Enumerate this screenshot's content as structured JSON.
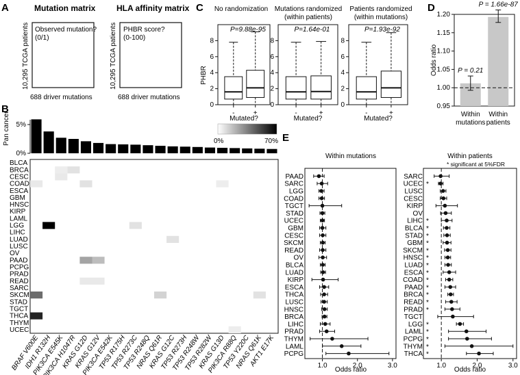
{
  "panelA": {
    "label": "A",
    "matrix1": {
      "title": "Mutation matrix",
      "ylabel": "10,295 TCGA patients",
      "cell": [
        "Observed mutation?",
        "(0/1)"
      ],
      "xlabel": "688 driver mutations"
    },
    "matrix2": {
      "title": "HLA affinity matrix",
      "ylabel": "10,295 TCGA patients",
      "cell": [
        "PHBR score?",
        "(0-100)"
      ],
      "xlabel": "688 driver mutations"
    }
  },
  "panelB": {
    "label": "B",
    "bar_ylabel": "Pan cancer",
    "bar_yticks": [
      "5%",
      "0%"
    ],
    "colorbar": {
      "min": "0%",
      "max": "70%"
    },
    "mutations": [
      "BRAF V600E",
      "IDH1 R132H",
      "PIK3CA E545K",
      "PIK3CA H1047R",
      "KRAS G12D",
      "KRAS G12V",
      "PIK3CA E542K",
      "TP53 R175H",
      "TP53 R273C",
      "TP53 R248Q",
      "NRAS Q61R",
      "KRAS G12C",
      "TP53 R273H",
      "TP53 R248W",
      "TP53 R282W",
      "KRAS G13D",
      "PIK3CA R88Q",
      "TP53 Y220C",
      "NRAS Q61K",
      "AKT1 E17K"
    ],
    "pan_values": [
      5.9,
      3.8,
      2.7,
      2.5,
      2.1,
      1.8,
      1.6,
      1.55,
      1.5,
      1.4,
      1.3,
      1.2,
      1.15,
      1.1,
      1.0,
      0.95,
      0.9,
      0.85,
      0.8,
      0.75
    ],
    "cancers": [
      "BLCA",
      "BRCA",
      "CESC",
      "COAD",
      "ESCA",
      "GBM",
      "HNSC",
      "KIRP",
      "LAML",
      "LGG",
      "LIHC",
      "LUAD",
      "LUSC",
      "OV",
      "PAAD",
      "PCPG",
      "PRAD",
      "READ",
      "SARC",
      "SKCM",
      "STAD",
      "TGCT",
      "THCA",
      "THYM",
      "UCEC"
    ],
    "highlights": [
      {
        "cancer": "LGG",
        "mutation": "IDH1 R132H",
        "value": 70
      },
      {
        "cancer": "THCA",
        "mutation": "BRAF V600E",
        "value": 60
      },
      {
        "cancer": "SKCM",
        "mutation": "BRAF V600E",
        "value": 40
      },
      {
        "cancer": "PAAD",
        "mutation": "KRAS G12D",
        "value": 25
      },
      {
        "cancer": "PAAD",
        "mutation": "KRAS G12V",
        "value": 18
      },
      {
        "cancer": "COAD",
        "mutation": "KRAS G12D",
        "value": 8
      },
      {
        "cancer": "SKCM",
        "mutation": "NRAS Q61R",
        "value": 12
      },
      {
        "cancer": "SKCM",
        "mutation": "NRAS Q61K",
        "value": 8
      },
      {
        "cancer": "BRCA",
        "mutation": "PIK3CA H1047R",
        "value": 8
      },
      {
        "cancer": "BRCA",
        "mutation": "PIK3CA E545K",
        "value": 5
      },
      {
        "cancer": "CESC",
        "mutation": "PIK3CA E545K",
        "value": 6
      },
      {
        "cancer": "LUAD",
        "mutation": "KRAS G12C",
        "value": 8
      },
      {
        "cancer": "READ",
        "mutation": "KRAS G12D",
        "value": 6
      },
      {
        "cancer": "READ",
        "mutation": "KRAS G12V",
        "value": 6
      },
      {
        "cancer": "LGG",
        "mutation": "TP53 R273C",
        "value": 8
      },
      {
        "cancer": "COAD",
        "mutation": "BRAF V600E",
        "value": 6
      },
      {
        "cancer": "UCEC",
        "mutation": "PIK3CA R88Q",
        "value": 5
      },
      {
        "cancer": "COAD",
        "mutation": "KRAS G13D",
        "value": 5
      }
    ]
  },
  "panelC": {
    "label": "C",
    "ylabel": "PHBR",
    "yticks": [
      0,
      2,
      4,
      6,
      8
    ],
    "xticks": [
      "-",
      "+"
    ],
    "xlabel": "Mutated?",
    "plots": [
      {
        "title1": "No randomization",
        "title2": "",
        "pval": "P=9.88e-95",
        "boxes": [
          {
            "lw": 0,
            "q1": 0.7,
            "med": 1.6,
            "q3": 3.5,
            "uw": 7.8
          },
          {
            "lw": 0,
            "q1": 0.9,
            "med": 2.1,
            "q3": 4.3,
            "uw": 9.1
          }
        ]
      },
      {
        "title1": "Mutations randomized",
        "title2": "(within patients)",
        "pval": "P=1.64e-01",
        "boxes": [
          {
            "lw": 0,
            "q1": 0.7,
            "med": 1.6,
            "q3": 3.5,
            "uw": 7.8
          },
          {
            "lw": 0,
            "q1": 0.7,
            "med": 1.65,
            "q3": 3.6,
            "uw": 7.9
          }
        ]
      },
      {
        "title1": "Patients randomized",
        "title2": "(within mutations)",
        "pval": "P=1.93e-92",
        "boxes": [
          {
            "lw": 0,
            "q1": 0.7,
            "med": 1.6,
            "q3": 3.5,
            "uw": 7.8
          },
          {
            "lw": 0,
            "q1": 0.9,
            "med": 2.1,
            "q3": 4.2,
            "uw": 9.0
          }
        ]
      }
    ]
  },
  "panelD": {
    "label": "D",
    "chart_data": {
      "type": "bar",
      "categories": [
        "Within mutations",
        "Within patients"
      ],
      "category_lines": [
        [
          "Within",
          "mutations"
        ],
        [
          "Within",
          "patients"
        ]
      ],
      "values": [
        1.012,
        1.193
      ],
      "errors": [
        [
          0.993,
          1.032
        ],
        [
          1.178,
          1.212
        ]
      ],
      "labels": [
        "P = 0.21",
        "P = 1.66e-87"
      ],
      "ylabel": "Odds ratio",
      "ylim": [
        0.95,
        1.2
      ],
      "yticks": [
        "0.95",
        "1.00",
        "1.05",
        "1.10",
        "1.15",
        "1.20"
      ],
      "reference_line": 1.0
    }
  },
  "panelE": {
    "label": "E",
    "xlabel": "Odds ratio",
    "xticks": [
      "1.0",
      "2.0",
      "3.0"
    ],
    "legend": "* significant at 5%FDR",
    "left": {
      "title": "Within mutations",
      "rows": [
        {
          "name": "PAAD",
          "or": 0.9,
          "lo": 0.75,
          "hi": 1.05,
          "sig": false
        },
        {
          "name": "SARC",
          "or": 0.98,
          "lo": 0.85,
          "hi": 1.15,
          "sig": false
        },
        {
          "name": "LGG",
          "or": 0.97,
          "lo": 0.9,
          "hi": 1.05,
          "sig": false
        },
        {
          "name": "COAD",
          "or": 0.98,
          "lo": 0.9,
          "hi": 1.06,
          "sig": false
        },
        {
          "name": "TGCT",
          "or": 1.0,
          "lo": 0.62,
          "hi": 1.55,
          "sig": false
        },
        {
          "name": "STAD",
          "or": 1.0,
          "lo": 0.93,
          "hi": 1.07,
          "sig": false
        },
        {
          "name": "UCEC",
          "or": 1.0,
          "lo": 0.94,
          "hi": 1.06,
          "sig": false
        },
        {
          "name": "GBM",
          "or": 1.0,
          "lo": 0.92,
          "hi": 1.1,
          "sig": false
        },
        {
          "name": "CESC",
          "or": 1.01,
          "lo": 0.92,
          "hi": 1.1,
          "sig": false
        },
        {
          "name": "SKCM",
          "or": 1.01,
          "lo": 0.94,
          "hi": 1.08,
          "sig": false
        },
        {
          "name": "READ",
          "or": 1.01,
          "lo": 0.92,
          "hi": 1.1,
          "sig": false
        },
        {
          "name": "OV",
          "or": 1.01,
          "lo": 0.9,
          "hi": 1.12,
          "sig": false
        },
        {
          "name": "BLCA",
          "or": 1.01,
          "lo": 0.94,
          "hi": 1.08,
          "sig": false
        },
        {
          "name": "LUAD",
          "or": 1.02,
          "lo": 0.95,
          "hi": 1.09,
          "sig": false
        },
        {
          "name": "KIRP",
          "or": 1.02,
          "lo": 0.7,
          "hi": 1.45,
          "sig": false
        },
        {
          "name": "ESCA",
          "or": 1.05,
          "lo": 0.92,
          "hi": 1.18,
          "sig": false
        },
        {
          "name": "THCA",
          "or": 1.05,
          "lo": 0.95,
          "hi": 1.15,
          "sig": false
        },
        {
          "name": "LUSC",
          "or": 1.05,
          "lo": 0.96,
          "hi": 1.14,
          "sig": false
        },
        {
          "name": "HNSC",
          "or": 1.06,
          "lo": 0.98,
          "hi": 1.14,
          "sig": false
        },
        {
          "name": "BRCA",
          "or": 1.06,
          "lo": 0.99,
          "hi": 1.13,
          "sig": false
        },
        {
          "name": "LIHC",
          "or": 1.08,
          "lo": 0.94,
          "hi": 1.22,
          "sig": false
        },
        {
          "name": "PRAD",
          "or": 1.12,
          "lo": 0.92,
          "hi": 1.35,
          "sig": false
        },
        {
          "name": "THYM",
          "or": 1.28,
          "lo": 0.65,
          "hi": 2.3,
          "sig": false
        },
        {
          "name": "LAML",
          "or": 1.55,
          "lo": 1.0,
          "hi": 2.1,
          "sig": false
        },
        {
          "name": "PCPG",
          "or": 1.75,
          "lo": 1.1,
          "hi": 2.9,
          "sig": false
        }
      ]
    },
    "right": {
      "title": "Within patients",
      "rows": [
        {
          "name": "SARC",
          "or": 0.98,
          "lo": 0.8,
          "hi": 1.22,
          "sig": false
        },
        {
          "name": "UCEC",
          "or": 0.98,
          "lo": 0.92,
          "hi": 1.05,
          "sig": true
        },
        {
          "name": "LUSC",
          "or": 1.05,
          "lo": 0.97,
          "hi": 1.13,
          "sig": false
        },
        {
          "name": "CESC",
          "or": 1.06,
          "lo": 0.97,
          "hi": 1.15,
          "sig": false
        },
        {
          "name": "KIRP",
          "or": 1.1,
          "lo": 0.85,
          "hi": 1.45,
          "sig": false
        },
        {
          "name": "OV",
          "or": 1.12,
          "lo": 0.98,
          "hi": 1.28,
          "sig": false
        },
        {
          "name": "LIHC",
          "or": 1.15,
          "lo": 1.0,
          "hi": 1.3,
          "sig": true
        },
        {
          "name": "BLCA",
          "or": 1.15,
          "lo": 1.06,
          "hi": 1.24,
          "sig": true
        },
        {
          "name": "STAD",
          "or": 1.16,
          "lo": 1.07,
          "hi": 1.25,
          "sig": true
        },
        {
          "name": "GBM",
          "or": 1.16,
          "lo": 1.05,
          "hi": 1.27,
          "sig": true
        },
        {
          "name": "SKCM",
          "or": 1.18,
          "lo": 1.09,
          "hi": 1.27,
          "sig": true
        },
        {
          "name": "HNSC",
          "or": 1.18,
          "lo": 1.1,
          "hi": 1.26,
          "sig": true
        },
        {
          "name": "LUAD",
          "or": 1.19,
          "lo": 1.1,
          "hi": 1.28,
          "sig": true
        },
        {
          "name": "ESCA",
          "or": 1.22,
          "lo": 1.05,
          "hi": 1.4,
          "sig": true
        },
        {
          "name": "COAD",
          "or": 1.22,
          "lo": 1.12,
          "hi": 1.32,
          "sig": true
        },
        {
          "name": "PAAD",
          "or": 1.25,
          "lo": 1.1,
          "hi": 1.4,
          "sig": true
        },
        {
          "name": "BRCA",
          "or": 1.26,
          "lo": 1.18,
          "hi": 1.34,
          "sig": true
        },
        {
          "name": "READ",
          "or": 1.28,
          "lo": 1.12,
          "hi": 1.44,
          "sig": true
        },
        {
          "name": "PRAD",
          "or": 1.3,
          "lo": 1.1,
          "hi": 1.52,
          "sig": true
        },
        {
          "name": "TGCT",
          "or": 1.32,
          "lo": 0.9,
          "hi": 1.9,
          "sig": false
        },
        {
          "name": "LGG",
          "or": 1.52,
          "lo": 1.42,
          "hi": 1.62,
          "sig": true
        },
        {
          "name": "LAML",
          "or": 1.7,
          "lo": 1.2,
          "hi": 2.25,
          "sig": true
        },
        {
          "name": "PCPG",
          "or": 1.72,
          "lo": 1.2,
          "hi": 2.4,
          "sig": true
        },
        {
          "name": "THYM",
          "or": 1.85,
          "lo": 1.1,
          "hi": 3.0,
          "sig": true
        },
        {
          "name": "THCA",
          "or": 2.05,
          "lo": 1.7,
          "hi": 2.45,
          "sig": true
        }
      ]
    }
  }
}
